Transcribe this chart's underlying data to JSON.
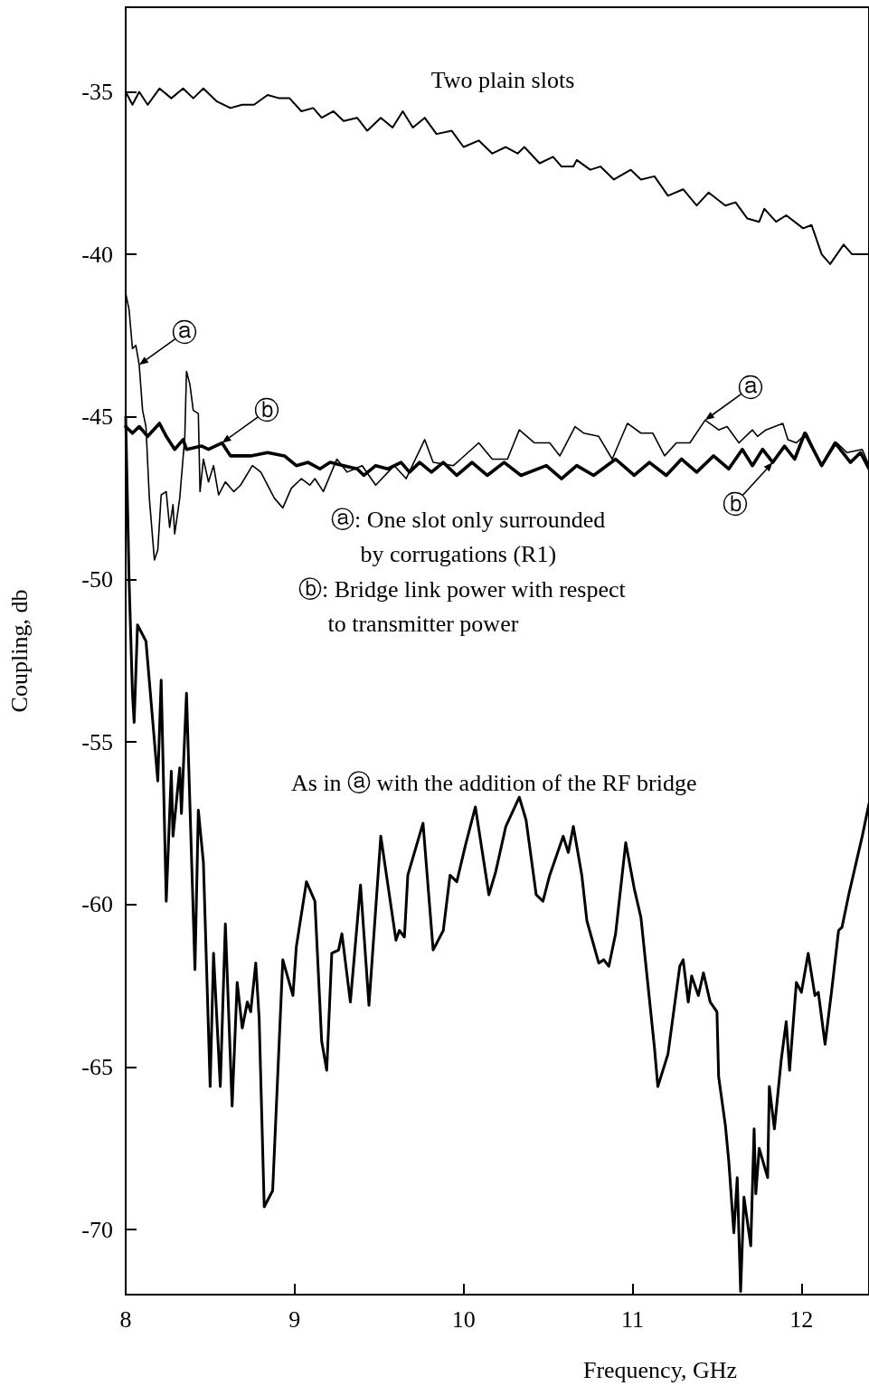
{
  "chart_data": {
    "type": "line",
    "xlabel": "Frequency, GHz",
    "ylabel": "Coupling, db",
    "xlim": [
      8,
      12.4
    ],
    "xticks": [
      8,
      9,
      10,
      11,
      12
    ],
    "ylim": [
      -72,
      -32.4
    ],
    "yticks": [
      -35,
      -40,
      -45,
      -50,
      -55,
      -60,
      -65,
      -70
    ],
    "grid": false,
    "marker": "none",
    "line_style": "solid",
    "series": [
      {
        "color": "#000000",
        "x": [
          8.0,
          8.04,
          8.08,
          8.13,
          8.2,
          8.27,
          8.34,
          8.4,
          8.46,
          8.54,
          8.62,
          8.69,
          8.76,
          8.84,
          8.91,
          8.97,
          9.04,
          9.11,
          9.16,
          9.23,
          9.29,
          9.37,
          9.43,
          9.51,
          9.58,
          9.64,
          9.7,
          9.77,
          9.84,
          9.93,
          10.0,
          10.09,
          10.17,
          10.25,
          10.32,
          10.36,
          10.45,
          10.53,
          10.58,
          10.65,
          10.67,
          10.75,
          10.81,
          10.89,
          10.99,
          11.05,
          11.13,
          11.21,
          11.3,
          11.38,
          11.45,
          11.55,
          11.61,
          11.68,
          11.75,
          11.78,
          11.85,
          11.91,
          12.01,
          12.06,
          12.12,
          12.17,
          12.25,
          12.3,
          12.4
        ],
        "values": [
          -35.0,
          -35.4,
          -35.0,
          -35.4,
          -34.9,
          -35.2,
          -34.9,
          -35.2,
          -34.9,
          -35.3,
          -35.5,
          -35.4,
          -35.4,
          -35.1,
          -35.2,
          -35.2,
          -35.6,
          -35.5,
          -35.8,
          -35.6,
          -35.9,
          -35.8,
          -36.2,
          -35.8,
          -36.1,
          -35.6,
          -36.1,
          -35.8,
          -36.3,
          -36.2,
          -36.7,
          -36.5,
          -36.9,
          -36.7,
          -36.9,
          -36.7,
          -37.2,
          -37.0,
          -37.3,
          -37.3,
          -37.1,
          -37.4,
          -37.3,
          -37.7,
          -37.4,
          -37.7,
          -37.6,
          -38.2,
          -38.0,
          -38.5,
          -38.1,
          -38.5,
          -38.4,
          -38.9,
          -39.0,
          -38.6,
          -39.0,
          -38.8,
          -39.2,
          -39.1,
          -40.0,
          -40.3,
          -39.7,
          -40.0,
          -40.0
        ]
      },
      {
        "color": "#000000",
        "x": [
          8.0,
          8.02,
          8.04,
          8.06,
          8.08,
          8.1,
          8.12,
          8.14,
          8.17,
          8.19,
          8.21,
          8.24,
          8.26,
          8.28,
          8.29,
          8.32,
          8.35,
          8.36,
          8.38,
          8.4,
          8.43,
          8.44,
          8.46,
          8.49,
          8.52,
          8.55,
          8.59,
          8.64,
          8.68,
          8.75,
          8.8,
          8.88,
          8.93,
          8.98,
          9.04,
          9.09,
          9.12,
          9.17,
          9.25,
          9.31,
          9.4,
          9.48,
          9.59,
          9.66,
          9.77,
          9.82,
          9.94,
          10.09,
          10.17,
          10.26,
          10.33,
          10.42,
          10.51,
          10.57,
          10.66,
          10.71,
          10.8,
          10.88,
          10.97,
          11.05,
          11.12,
          11.19,
          11.26,
          11.34,
          11.43,
          11.51,
          11.56,
          11.63,
          11.71,
          11.74,
          11.79,
          11.89,
          11.92,
          11.97,
          12.03,
          12.12,
          12.21,
          12.27,
          12.36,
          12.4
        ],
        "values": [
          -41.2,
          -41.7,
          -42.9,
          -42.8,
          -43.4,
          -44.8,
          -45.3,
          -47.5,
          -49.4,
          -49.1,
          -47.4,
          -47.3,
          -48.4,
          -47.7,
          -48.6,
          -47.5,
          -45.6,
          -43.6,
          -44.0,
          -44.8,
          -44.9,
          -47.3,
          -46.3,
          -47.0,
          -46.5,
          -47.4,
          -47.0,
          -47.3,
          -47.1,
          -46.5,
          -46.7,
          -47.5,
          -47.8,
          -47.2,
          -46.9,
          -47.1,
          -46.9,
          -47.3,
          -46.3,
          -46.7,
          -46.5,
          -47.1,
          -46.5,
          -46.9,
          -45.7,
          -46.4,
          -46.5,
          -45.8,
          -46.3,
          -46.3,
          -45.4,
          -45.8,
          -45.8,
          -46.2,
          -45.3,
          -45.5,
          -45.6,
          -46.3,
          -45.2,
          -45.5,
          -45.5,
          -46.2,
          -45.8,
          -45.8,
          -45.1,
          -45.4,
          -45.3,
          -45.8,
          -45.4,
          -45.6,
          -45.4,
          -45.2,
          -45.7,
          -45.8,
          -45.5,
          -46.5,
          -45.8,
          -46.1,
          -46.0,
          -46.5
        ]
      },
      {
        "color": "#000000",
        "x": [
          8.0,
          8.04,
          8.08,
          8.13,
          8.2,
          8.24,
          8.29,
          8.34,
          8.36,
          8.45,
          8.49,
          8.57,
          8.62,
          8.74,
          8.84,
          8.94,
          9.01,
          9.08,
          9.15,
          9.21,
          9.29,
          9.37,
          9.41,
          9.48,
          9.55,
          9.63,
          9.68,
          9.74,
          9.81,
          9.88,
          9.96,
          10.05,
          10.14,
          10.24,
          10.34,
          10.49,
          10.58,
          10.67,
          10.77,
          10.9,
          11.01,
          11.1,
          11.2,
          11.29,
          11.38,
          11.48,
          11.57,
          11.65,
          11.71,
          11.77,
          11.83,
          11.9,
          11.96,
          12.02,
          12.12,
          12.2,
          12.29,
          12.35,
          12.4
        ],
        "values": [
          -45.3,
          -45.5,
          -45.3,
          -45.6,
          -45.2,
          -45.6,
          -46.0,
          -45.7,
          -46.0,
          -45.9,
          -46.0,
          -45.8,
          -46.2,
          -46.2,
          -46.1,
          -46.2,
          -46.5,
          -46.4,
          -46.6,
          -46.4,
          -46.5,
          -46.6,
          -46.8,
          -46.5,
          -46.6,
          -46.4,
          -46.7,
          -46.4,
          -46.7,
          -46.4,
          -46.8,
          -46.4,
          -46.8,
          -46.4,
          -46.8,
          -46.5,
          -46.9,
          -46.5,
          -46.8,
          -46.3,
          -46.8,
          -46.4,
          -46.8,
          -46.3,
          -46.7,
          -46.2,
          -46.6,
          -46.0,
          -46.5,
          -46.0,
          -46.4,
          -45.9,
          -46.3,
          -45.5,
          -46.5,
          -45.8,
          -46.4,
          -46.1,
          -46.6
        ]
      },
      {
        "color": "#000000",
        "x": [
          8.0,
          8.02,
          8.04,
          8.05,
          8.07,
          8.12,
          8.19,
          8.21,
          8.24,
          8.27,
          8.28,
          8.32,
          8.33,
          8.36,
          8.41,
          8.43,
          8.46,
          8.5,
          8.52,
          8.56,
          8.59,
          8.63,
          8.66,
          8.69,
          8.72,
          8.74,
          8.77,
          8.79,
          8.82,
          8.85,
          8.87,
          8.89,
          8.93,
          8.99,
          9.01,
          9.07,
          9.12,
          9.16,
          9.19,
          9.22,
          9.26,
          9.28,
          9.33,
          9.39,
          9.44,
          9.51,
          9.6,
          9.62,
          9.65,
          9.67,
          9.76,
          9.82,
          9.88,
          9.92,
          9.96,
          10.01,
          10.07,
          10.15,
          10.19,
          10.25,
          10.33,
          10.37,
          10.43,
          10.47,
          10.51,
          10.59,
          10.62,
          10.65,
          10.7,
          10.73,
          10.8,
          10.83,
          10.86,
          10.9,
          10.96,
          11.01,
          11.05,
          11.1,
          11.13,
          11.15,
          11.21,
          11.28,
          11.3,
          11.33,
          11.35,
          11.39,
          11.42,
          11.46,
          11.5,
          11.51,
          11.55,
          11.57,
          11.6,
          11.62,
          11.64,
          11.66,
          11.7,
          11.72,
          11.73,
          11.75,
          11.8,
          11.81,
          11.84,
          11.88,
          11.91,
          11.93,
          11.97,
          12.0,
          12.04,
          12.08,
          12.1,
          12.14,
          12.18,
          12.22,
          12.24,
          12.28,
          12.32,
          12.36,
          12.4
        ],
        "values": [
          -45.0,
          -50.0,
          -53.5,
          -54.4,
          -51.4,
          -51.9,
          -56.2,
          -53.1,
          -59.9,
          -55.9,
          -57.9,
          -55.8,
          -57.2,
          -53.5,
          -62.0,
          -57.1,
          -58.7,
          -65.6,
          -61.5,
          -65.6,
          -60.6,
          -66.2,
          -62.4,
          -63.8,
          -63.0,
          -63.3,
          -61.8,
          -63.5,
          -69.3,
          null,
          -68.8,
          null,
          -61.7,
          -62.8,
          -61.3,
          -59.3,
          -59.9,
          -64.2,
          -65.1,
          -61.5,
          -61.4,
          -60.9,
          -63.0,
          -59.4,
          -63.1,
          -57.9,
          -61.1,
          -60.8,
          -61.0,
          -59.1,
          -57.5,
          -61.4,
          -60.8,
          -59.1,
          -59.3,
          -58.2,
          -57.0,
          -59.7,
          -59.0,
          -57.6,
          -56.7,
          -57.4,
          -59.7,
          -59.9,
          -59.1,
          -57.9,
          -58.4,
          -57.6,
          -59.1,
          -60.5,
          -61.8,
          -61.7,
          -61.9,
          -60.9,
          -58.1,
          -59.5,
          -60.4,
          -62.9,
          -64.4,
          -65.6,
          -64.6,
          -61.9,
          -61.7,
          -63.0,
          -62.2,
          -62.8,
          -62.1,
          -63.0,
          -63.3,
          -65.3,
          -66.8,
          -67.9,
          -70.1,
          -68.4,
          -71.9,
          -69.0,
          -70.5,
          -66.9,
          -68.9,
          -67.5,
          -68.4,
          -65.6,
          -66.9,
          -64.8,
          -63.6,
          -65.1,
          -62.4,
          -62.7,
          -61.5,
          -62.8,
          -62.7,
          -64.3,
          -62.6,
          -60.8,
          -60.7,
          -59.7,
          -58.8,
          -57.9,
          -56.9
        ]
      }
    ],
    "annotations": [
      "Two plain slots",
      "ⓐ: One slot only surrounded\n     by corrugations (R1)",
      "ⓑ: Bridge link power with respect\n     to transmitter power",
      "As in ⓐ with the addition of the RF bridge",
      {
        "text": "ⓐ",
        "x": 8.08,
        "y": -43.4
      },
      {
        "text": "ⓑ",
        "x": 8.57,
        "y": -45.8
      },
      {
        "text": "ⓐ",
        "x": 11.43,
        "y": -45.1
      },
      {
        "text": "ⓑ",
        "x": 11.83,
        "y": -46.4
      }
    ]
  }
}
